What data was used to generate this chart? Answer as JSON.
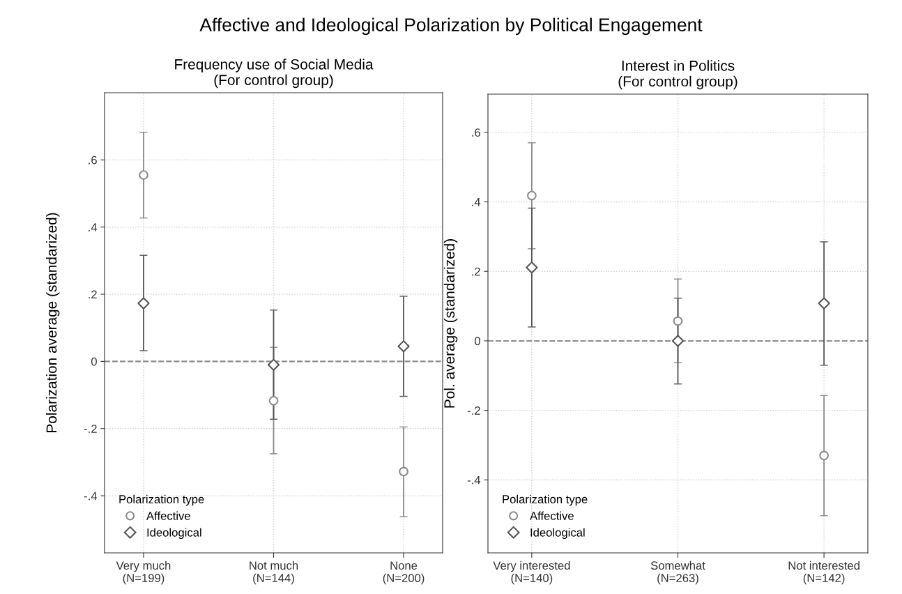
{
  "chart_data": [
    {
      "type": "scatter",
      "title": "Frequency use of Social Media\n(For control group)",
      "ylabel": "Polarization average (standarized)",
      "annotations": [
        "Affective and Ideological Polarization by Political Engagement"
      ],
      "legend_title": "Polarization type",
      "legend": "bottom left",
      "grid": true,
      "categories": [
        "Very much\n(N=199)",
        "Not much\n(N=144)",
        "None\n(N=200)"
      ],
      "ylim": [
        -0.57,
        0.8
      ],
      "yticks": [
        {
          "value": -0.4,
          "label": "-.4"
        },
        {
          "value": -0.2,
          "label": "-.2"
        },
        0,
        {
          "value": 0.2,
          "label": ".2"
        },
        {
          "value": 0.4,
          "label": ".4"
        },
        {
          "value": 0.6,
          "label": ".6"
        }
      ],
      "ref_lines": [
        {
          "axis": "y",
          "value": 0,
          "label": null,
          "color": "#8c8c8c",
          "line_style": "dashed"
        }
      ],
      "series": [
        {
          "name": "Affective",
          "color": "#8a8a8a",
          "marker": "circle",
          "values": [
            0.555,
            -0.117,
            -0.328
          ],
          "errors": [
            [
              0.427,
              0.682
            ],
            [
              -0.275,
              0.042
            ],
            [
              -0.462,
              -0.195
            ]
          ]
        },
        {
          "name": "Ideological",
          "color": "#555555",
          "marker": "diamond",
          "values": [
            0.173,
            -0.01,
            0.045
          ],
          "errors": [
            [
              0.032,
              0.316
            ],
            [
              -0.172,
              0.153
            ],
            [
              -0.104,
              0.194
            ]
          ]
        }
      ]
    },
    {
      "type": "scatter",
      "title": "Interest in Politics\n(For control group)",
      "ylabel": "Pol. average (standarized)",
      "legend_title": "Polarization type",
      "legend": "bottom left",
      "grid": true,
      "categories": [
        "Very interested\n(N=140)",
        "Somewhat\n(N=263)",
        "Not interested\n(N=142)"
      ],
      "ylim": [
        -0.61,
        0.71
      ],
      "yticks": [
        {
          "value": -0.4,
          "label": "-.4"
        },
        {
          "value": -0.2,
          "label": "-.2"
        },
        0,
        {
          "value": 0.2,
          "label": ".2"
        },
        {
          "value": 0.4,
          "label": ".4"
        },
        {
          "value": 0.6,
          "label": ".6"
        }
      ],
      "ref_lines": [
        {
          "axis": "y",
          "value": 0,
          "label": null,
          "color": "#8c8c8c",
          "line_style": "dashed"
        }
      ],
      "series": [
        {
          "name": "Affective",
          "color": "#8a8a8a",
          "marker": "circle",
          "values": [
            0.418,
            0.057,
            -0.33
          ],
          "errors": [
            [
              0.265,
              0.57
            ],
            [
              -0.063,
              0.178
            ],
            [
              -0.503,
              -0.157
            ]
          ]
        },
        {
          "name": "Ideological",
          "color": "#555555",
          "marker": "diamond",
          "values": [
            0.211,
            0.0,
            0.108
          ],
          "errors": [
            [
              0.04,
              0.382
            ],
            [
              -0.124,
              0.123
            ],
            [
              -0.07,
              0.285
            ]
          ]
        }
      ]
    }
  ]
}
